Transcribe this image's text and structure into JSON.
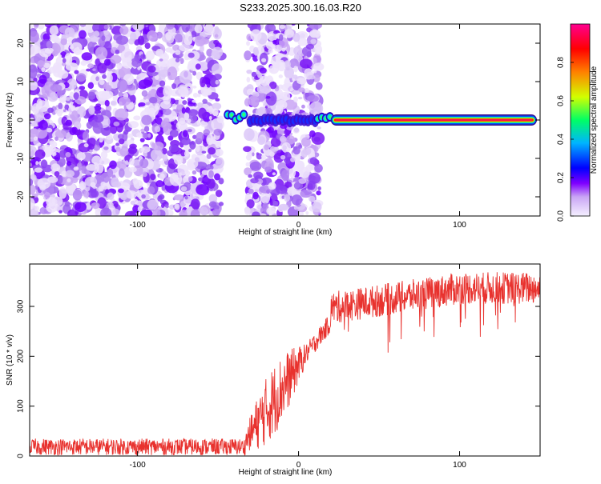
{
  "title": "S233.2025.300.16.03.R20",
  "chart_data": [
    {
      "type": "heatmap",
      "xlabel": "Height of straight line (km)",
      "ylabel": "Frequency (Hz)",
      "xlim": [
        -167,
        150
      ],
      "ylim": [
        -25,
        25
      ],
      "xticks": [
        -100,
        0,
        100
      ],
      "yticks": [
        -20,
        -10,
        0,
        10,
        20
      ],
      "colorbar": {
        "label": "Normalized spectral amplitude",
        "range": [
          0,
          1
        ],
        "ticks": [
          "0.0",
          "0.2",
          "0.4",
          "0.6",
          "0.8"
        ],
        "colormap": [
          "#f5f0ff",
          "#c9a5f5",
          "#7f00ff",
          "#0000ff",
          "#00b4ff",
          "#00ff64",
          "#d2ff00",
          "#ff8000",
          "#ff0000",
          "#ff0090"
        ]
      },
      "regions": [
        {
          "x_range": [
            -167,
            -48
          ],
          "content": "noise"
        },
        {
          "x_range": [
            -48,
            -32
          ],
          "content": "blank"
        },
        {
          "x_range": [
            -32,
            13
          ],
          "content": "noise"
        },
        {
          "x_range": [
            13,
            150
          ],
          "content": "blank"
        }
      ],
      "signal_tone": [
        {
          "x_range": [
            -44,
            -32
          ],
          "frequency": 1,
          "amplitude": 0.45
        },
        {
          "x_range": [
            -30,
            12
          ],
          "frequency": 0,
          "amplitude": 0.15
        },
        {
          "x_range": [
            12,
            20
          ],
          "frequency": 0.5,
          "amplitude": 0.4
        },
        {
          "x_range": [
            20,
            148
          ],
          "frequency": 0,
          "amplitude": 0.95
        }
      ]
    },
    {
      "type": "line",
      "xlabel": "Height of straight line (km)",
      "ylabel": "SNR (10 * v/v)",
      "xlim": [
        -167,
        150
      ],
      "ylim": [
        0,
        385
      ],
      "xticks": [
        -100,
        0,
        100
      ],
      "yticks": [
        0,
        100,
        200,
        300
      ],
      "color": "#e8322e",
      "series_profile": {
        "noise_floor": {
          "x_range": [
            -167,
            -33
          ],
          "min": 2,
          "max": 35
        },
        "rise": {
          "x_range": [
            -33,
            20
          ],
          "from": 30,
          "to": 270
        },
        "plateau": {
          "x_range": [
            20,
            150
          ],
          "from": 300,
          "to": 340,
          "spread": 50
        }
      }
    }
  ]
}
